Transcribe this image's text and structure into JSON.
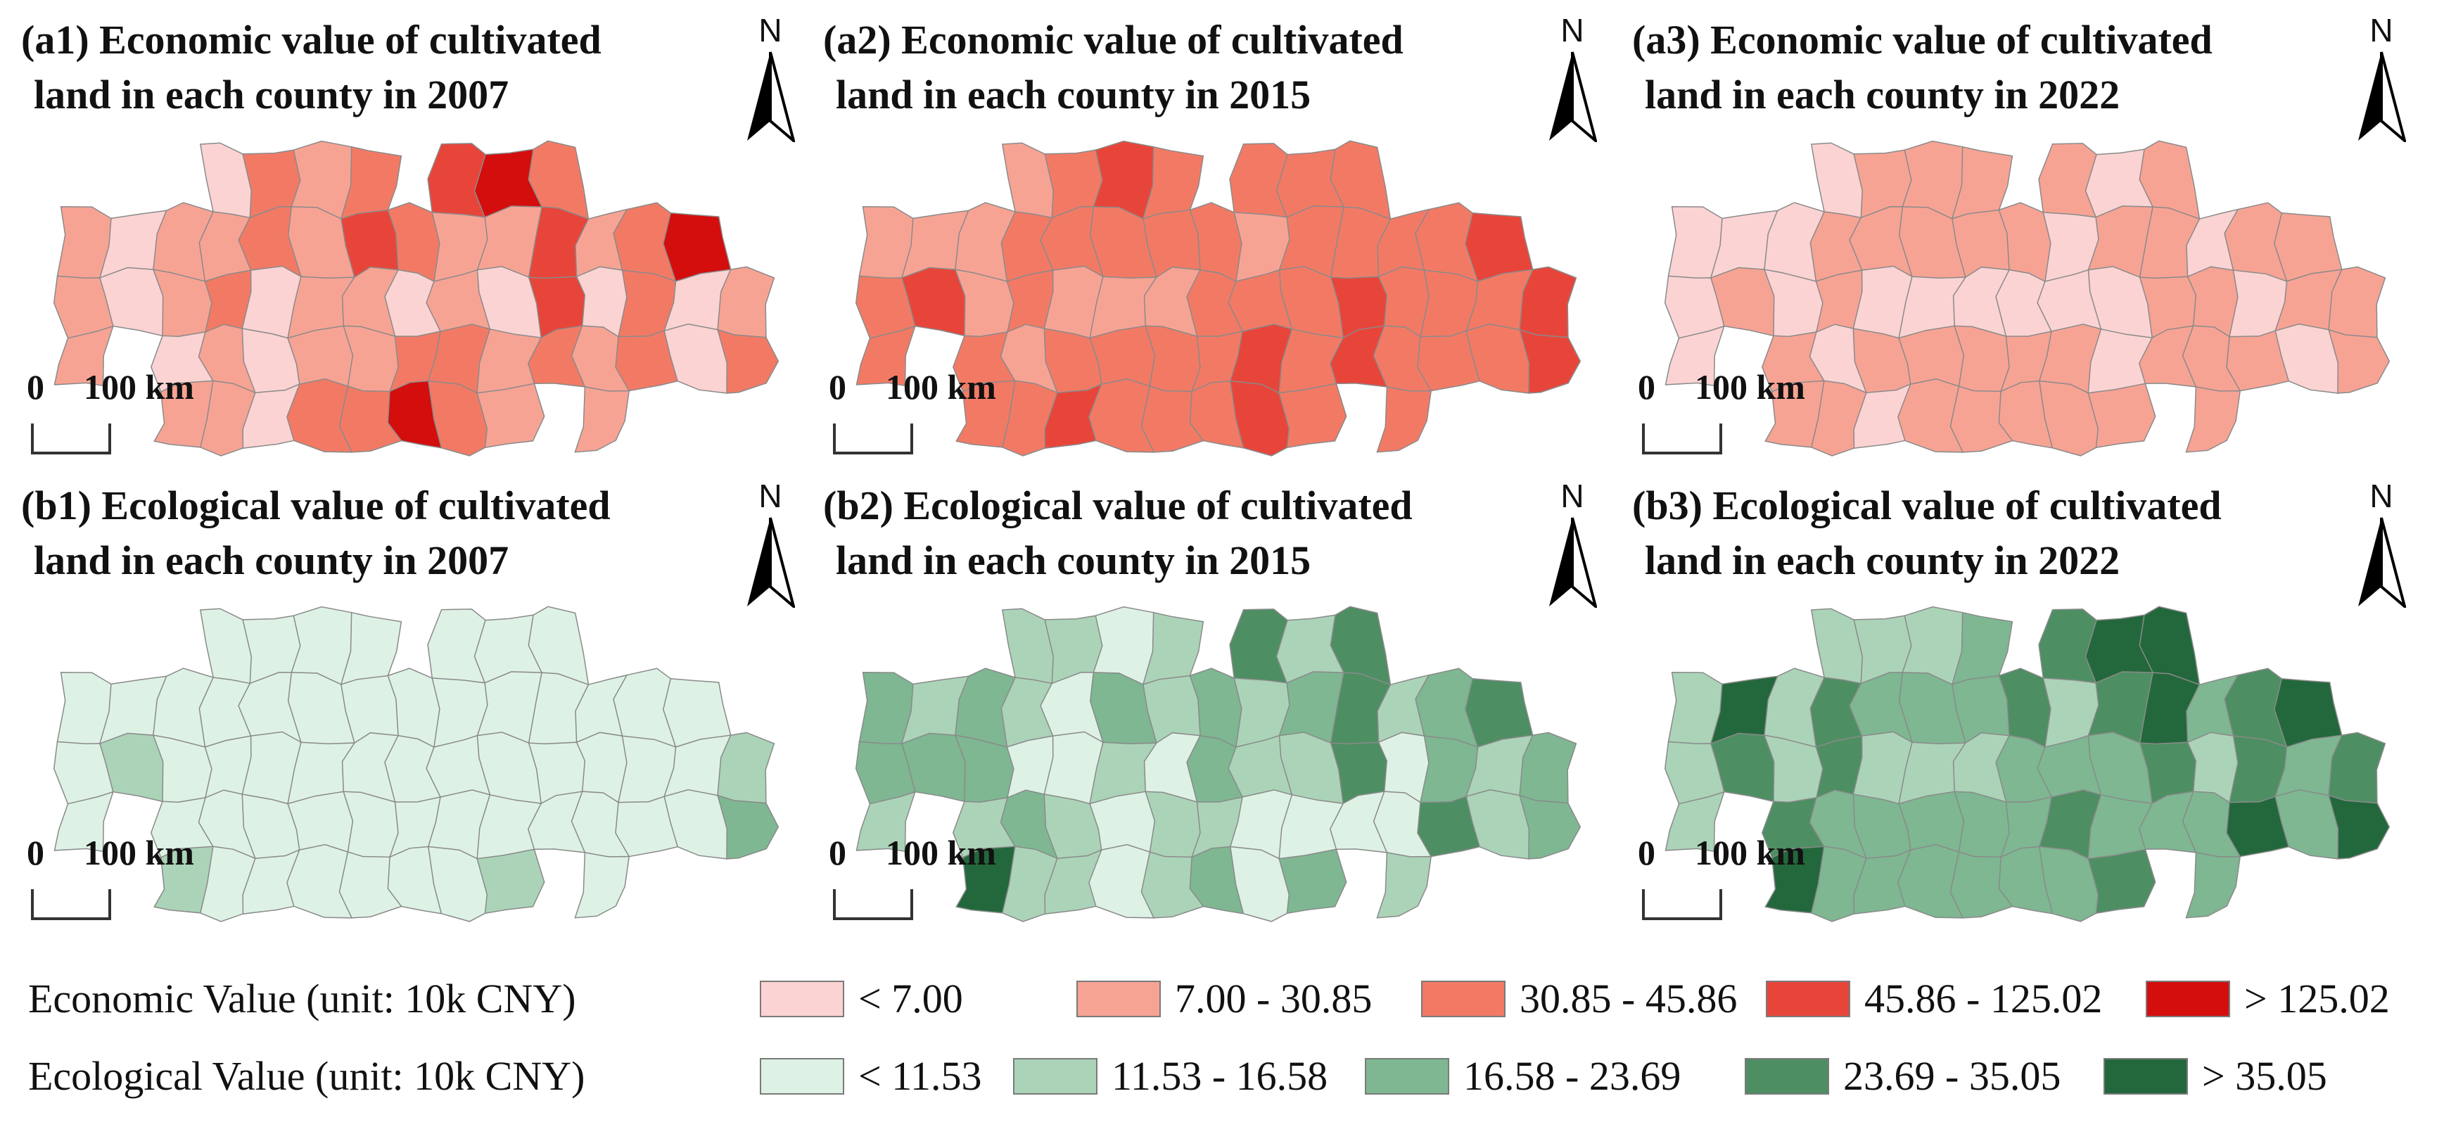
{
  "panels": [
    {
      "id": "a1",
      "title_line1": "(a1) Economic value of cultivated",
      "title_line2": "land in each county in 2007",
      "scheme": "economic",
      "year": "2007"
    },
    {
      "id": "a2",
      "title_line1": "(a2) Economic value of cultivated",
      "title_line2": "land in each county in 2015",
      "scheme": "economic",
      "year": "2015"
    },
    {
      "id": "a3",
      "title_line1": "(a3) Economic value of cultivated",
      "title_line2": "land in each county in 2022",
      "scheme": "economic",
      "year": "2022"
    },
    {
      "id": "b1",
      "title_line1": "(b1) Ecological value of cultivated",
      "title_line2": "land in each county in 2007",
      "scheme": "ecological",
      "year": "2007"
    },
    {
      "id": "b2",
      "title_line1": "(b2) Ecological value of cultivated",
      "title_line2": "land in each county in 2015",
      "scheme": "ecological",
      "year": "2015"
    },
    {
      "id": "b3",
      "title_line1": "(b3) Ecological value of cultivated",
      "title_line2": "land in each county in 2022",
      "scheme": "ecological",
      "year": "2022"
    }
  ],
  "north_arrow": {
    "letter": "N"
  },
  "scale_bar": {
    "start": "0",
    "end": "100 km"
  },
  "legend": {
    "economic": {
      "label": "Economic Value (unit: 10k CNY)",
      "classes": [
        {
          "text": "< 7.00",
          "color": "#fbd3d3"
        },
        {
          "text": "7.00 - 30.85",
          "color": "#f7a394"
        },
        {
          "text": "30.85 - 45.86",
          "color": "#f27a65"
        },
        {
          "text": "45.86 - 125.02",
          "color": "#e8453a"
        },
        {
          "text": "> 125.02",
          "color": "#d40d0d"
        }
      ]
    },
    "ecological": {
      "label": "Ecological Value (unit: 10k CNY)",
      "classes": [
        {
          "text": "< 11.53",
          "color": "#def1e5"
        },
        {
          "text": "11.53 - 16.58",
          "color": "#abd3b8"
        },
        {
          "text": "16.58 - 23.69",
          "color": "#7eb792"
        },
        {
          "text": "23.69 - 35.05",
          "color": "#4e8e63"
        },
        {
          "text": "> 35.05",
          "color": "#23683c"
        }
      ]
    }
  },
  "map_classes": {
    "a1": [
      1,
      1,
      1,
      0,
      0,
      1,
      1,
      0,
      1,
      0,
      1,
      2,
      1,
      1,
      2,
      2,
      0,
      0,
      0,
      1,
      1,
      1,
      1,
      2,
      2,
      3,
      1,
      1,
      2,
      2,
      0,
      2,
      4,
      3,
      1,
      1,
      2,
      2,
      4,
      1,
      0,
      1,
      1,
      2,
      3,
      3,
      2,
      1,
      0,
      1,
      1,
      2,
      2,
      2,
      4,
      0,
      0,
      1,
      2,
      1
    ],
    "a2": [
      1,
      2,
      2,
      1,
      3,
      1,
      1,
      2,
      2,
      1,
      2,
      2,
      1,
      2,
      2,
      2,
      1,
      2,
      3,
      3,
      2,
      1,
      2,
      2,
      2,
      2,
      1,
      2,
      2,
      2,
      2,
      2,
      2,
      2,
      1,
      2,
      3,
      3,
      2,
      2,
      2,
      2,
      2,
      2,
      2,
      3,
      3,
      2,
      2,
      2,
      2,
      2,
      2,
      2,
      3,
      2,
      2,
      3,
      3,
      2
    ],
    "a3": [
      0,
      0,
      0,
      0,
      1,
      0,
      0,
      1,
      1,
      0,
      1,
      1,
      0,
      1,
      1,
      1,
      0,
      1,
      0,
      1,
      1,
      0,
      1,
      1,
      1,
      1,
      0,
      1,
      1,
      1,
      0,
      1,
      1,
      1,
      0,
      0,
      1,
      1,
      0,
      1,
      0,
      0,
      1,
      1,
      1,
      1,
      1,
      0,
      1,
      1,
      1,
      1,
      0,
      1,
      1,
      1,
      0,
      1,
      1,
      0
    ],
    "b1": [
      0,
      0,
      0,
      0,
      1,
      0,
      0,
      0,
      1,
      0,
      0,
      0,
      0,
      0,
      0,
      0,
      0,
      0,
      0,
      0,
      0,
      0,
      0,
      0,
      0,
      0,
      0,
      0,
      0,
      0,
      0,
      0,
      0,
      0,
      0,
      0,
      0,
      0,
      0,
      0,
      0,
      0,
      1,
      0,
      0,
      0,
      0,
      0,
      0,
      0,
      0,
      0,
      0,
      0,
      0,
      0,
      0,
      1,
      2,
      0
    ],
    "b2": [
      2,
      2,
      1,
      1,
      2,
      2,
      2,
      1,
      4,
      1,
      1,
      0,
      2,
      1,
      1,
      0,
      0,
      1,
      1,
      0,
      2,
      1,
      0,
      0,
      1,
      1,
      0,
      1,
      1,
      2,
      2,
      1,
      2,
      3,
      1,
      1,
      0,
      0,
      1,
      2,
      1,
      0,
      2,
      3,
      3,
      3,
      0,
      1,
      0,
      0,
      1,
      2,
      2,
      3,
      3,
      1,
      1,
      2,
      2,
      1
    ],
    "b3": [
      1,
      1,
      1,
      4,
      3,
      1,
      1,
      3,
      4,
      1,
      3,
      3,
      2,
      2,
      1,
      2,
      1,
      2,
      2,
      1,
      2,
      1,
      2,
      2,
      2,
      2,
      1,
      2,
      2,
      3,
      2,
      2,
      2,
      3,
      1,
      2,
      3,
      2,
      4,
      3,
      2,
      2,
      3,
      4,
      4,
      3,
      2,
      2,
      1,
      2,
      2,
      3,
      3,
      4,
      4,
      2,
      2,
      3,
      4,
      3
    ]
  }
}
